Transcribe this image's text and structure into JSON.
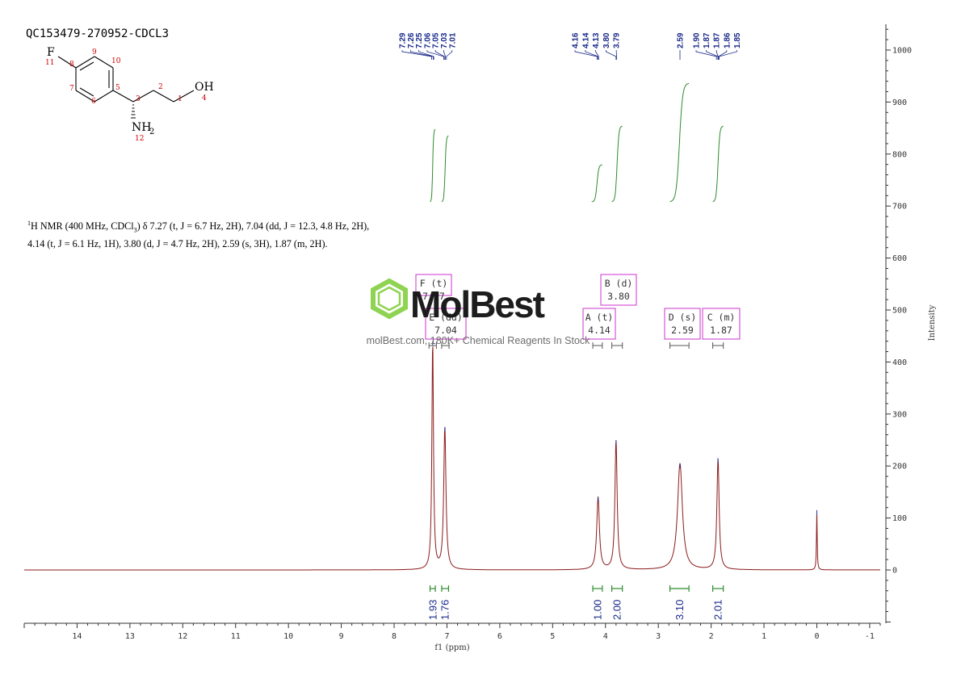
{
  "sample_id": "QC153479-270952-CDCL3",
  "description": {
    "prefix_sup": "1",
    "text_a": "H NMR (400 MHz, CDCl",
    "text_sub": "3",
    "text_b": ") δ 7.27 (t, J = 6.7 Hz, 2H), 7.04 (dd, J = 12.3, 4.8 Hz, 2H), 4.14 (t, J = 6.1 Hz, 1H), 3.80 (d, J = 4.7 Hz, 2H), 2.59 (s, 3H), 1.87 (m, 2H)."
  },
  "structure": {
    "atoms": {
      "F": "F",
      "F_num": "11",
      "OH": "OH",
      "OH_num": "4",
      "NH": "NH",
      "NH_sub": "2",
      "NH_num": "12",
      "c1": "1",
      "c2": "2",
      "c3": "3",
      "c5": "5",
      "c6": "6",
      "c7": "7",
      "c8": "8",
      "c9": "9",
      "c10": "10"
    }
  },
  "watermark": {
    "brand": "MolBest",
    "tagline": "molBest.com, 180K+ Chemical Reagents In Stock"
  },
  "colors": {
    "spectrum": "#8b1a1a",
    "integral_curve": "#2e8b2e",
    "integral_label": "#1a2a8a",
    "peak_label": "#1a2a8a",
    "multiplet_box": "#cc33cc",
    "watermark_green": "#88d148"
  },
  "chart_data": {
    "type": "line",
    "title": "",
    "xlabel": "f1 (ppm)",
    "ylabel": "Intensity",
    "xlim": [
      15.0,
      -1.2
    ],
    "ylim": [
      -110,
      1050
    ],
    "x_ticks": [
      14,
      13,
      12,
      11,
      10,
      9,
      8,
      7,
      6,
      5,
      4,
      3,
      2,
      1,
      0,
      -1
    ],
    "y_ticks": [
      0,
      100,
      200,
      300,
      400,
      500,
      600,
      700,
      800,
      900,
      1000
    ],
    "peaks": [
      {
        "ppm": 7.27,
        "height": 440
      },
      {
        "ppm": 7.04,
        "height": 275
      },
      {
        "ppm": 4.14,
        "height": 140
      },
      {
        "ppm": 3.8,
        "height": 250
      },
      {
        "ppm": 2.59,
        "height": 205
      },
      {
        "ppm": 1.87,
        "height": 215
      },
      {
        "ppm": 0.0,
        "height": 115
      }
    ],
    "peak_labels": [
      {
        "group": 1,
        "values": [
          "7.29",
          "7.26",
          "7.25",
          "7.06",
          "7.05",
          "7.03",
          "7.01"
        ]
      },
      {
        "group": 2,
        "values": [
          "4.16",
          "4.14",
          "4.13",
          "3.80",
          "3.79"
        ]
      },
      {
        "group": 3,
        "values": [
          "2.59"
        ]
      },
      {
        "group": 4,
        "values": [
          "1.90",
          "1.87",
          "1.87",
          "1.86",
          "1.85"
        ]
      }
    ],
    "multiplets": [
      {
        "label": "F (t)",
        "shift": "7.27",
        "from": 7.34,
        "to": 7.2
      },
      {
        "label": "E (dd)",
        "shift": "7.04",
        "from": 7.1,
        "to": 6.96
      },
      {
        "label": "A (t)",
        "shift": "4.14",
        "from": 4.24,
        "to": 4.06
      },
      {
        "label": "B (d)",
        "shift": "3.80",
        "from": 3.88,
        "to": 3.68
      },
      {
        "label": "D (s)",
        "shift": "2.59",
        "from": 2.78,
        "to": 2.42
      },
      {
        "label": "C (m)",
        "shift": "1.87",
        "from": 1.97,
        "to": 1.77
      }
    ],
    "integrals": [
      {
        "value": "1.93",
        "from": 7.32,
        "to": 7.22
      },
      {
        "value": "1.76",
        "from": 7.1,
        "to": 6.97
      },
      {
        "value": "1.00",
        "from": 4.24,
        "to": 4.06
      },
      {
        "value": "2.00",
        "from": 3.88,
        "to": 3.68
      },
      {
        "value": "3.10",
        "from": 2.78,
        "to": 2.42
      },
      {
        "value": "2.01",
        "from": 1.97,
        "to": 1.77
      }
    ]
  }
}
